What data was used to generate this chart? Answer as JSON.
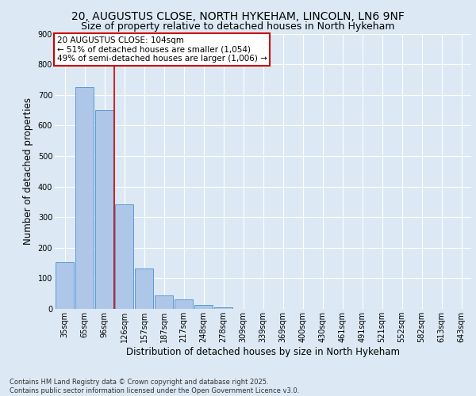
{
  "title_line1": "20, AUGUSTUS CLOSE, NORTH HYKEHAM, LINCOLN, LN6 9NF",
  "title_line2": "Size of property relative to detached houses in North Hykeham",
  "xlabel": "Distribution of detached houses by size in North Hykeham",
  "ylabel": "Number of detached properties",
  "footer": "Contains HM Land Registry data © Crown copyright and database right 2025.\nContains public sector information licensed under the Open Government Licence v3.0.",
  "categories": [
    "35sqm",
    "65sqm",
    "96sqm",
    "126sqm",
    "157sqm",
    "187sqm",
    "217sqm",
    "248sqm",
    "278sqm",
    "309sqm",
    "339sqm",
    "369sqm",
    "400sqm",
    "430sqm",
    "461sqm",
    "491sqm",
    "521sqm",
    "552sqm",
    "582sqm",
    "613sqm",
    "643sqm"
  ],
  "values": [
    152,
    725,
    650,
    343,
    133,
    44,
    31,
    12,
    5,
    0,
    0,
    0,
    0,
    0,
    0,
    0,
    0,
    0,
    0,
    0,
    0
  ],
  "bar_color": "#aec6e8",
  "bar_edge_color": "#5b9bd5",
  "vline_x": 2.5,
  "vline_color": "#cc0000",
  "annotation_text": "20 AUGUSTUS CLOSE: 104sqm\n← 51% of detached houses are smaller (1,054)\n49% of semi-detached houses are larger (1,006) →",
  "annotation_box_color": "#ffffff",
  "annotation_box_edge": "#cc0000",
  "bg_color": "#dce9f5",
  "plot_bg_color": "#dce9f5",
  "ylim": [
    0,
    900
  ],
  "yticks": [
    0,
    100,
    200,
    300,
    400,
    500,
    600,
    700,
    800,
    900
  ],
  "grid_color": "#ffffff",
  "title_fontsize": 10,
  "subtitle_fontsize": 9,
  "tick_fontsize": 7,
  "xlabel_fontsize": 8.5,
  "ylabel_fontsize": 8.5,
  "footer_fontsize": 6,
  "annot_fontsize": 7.5
}
